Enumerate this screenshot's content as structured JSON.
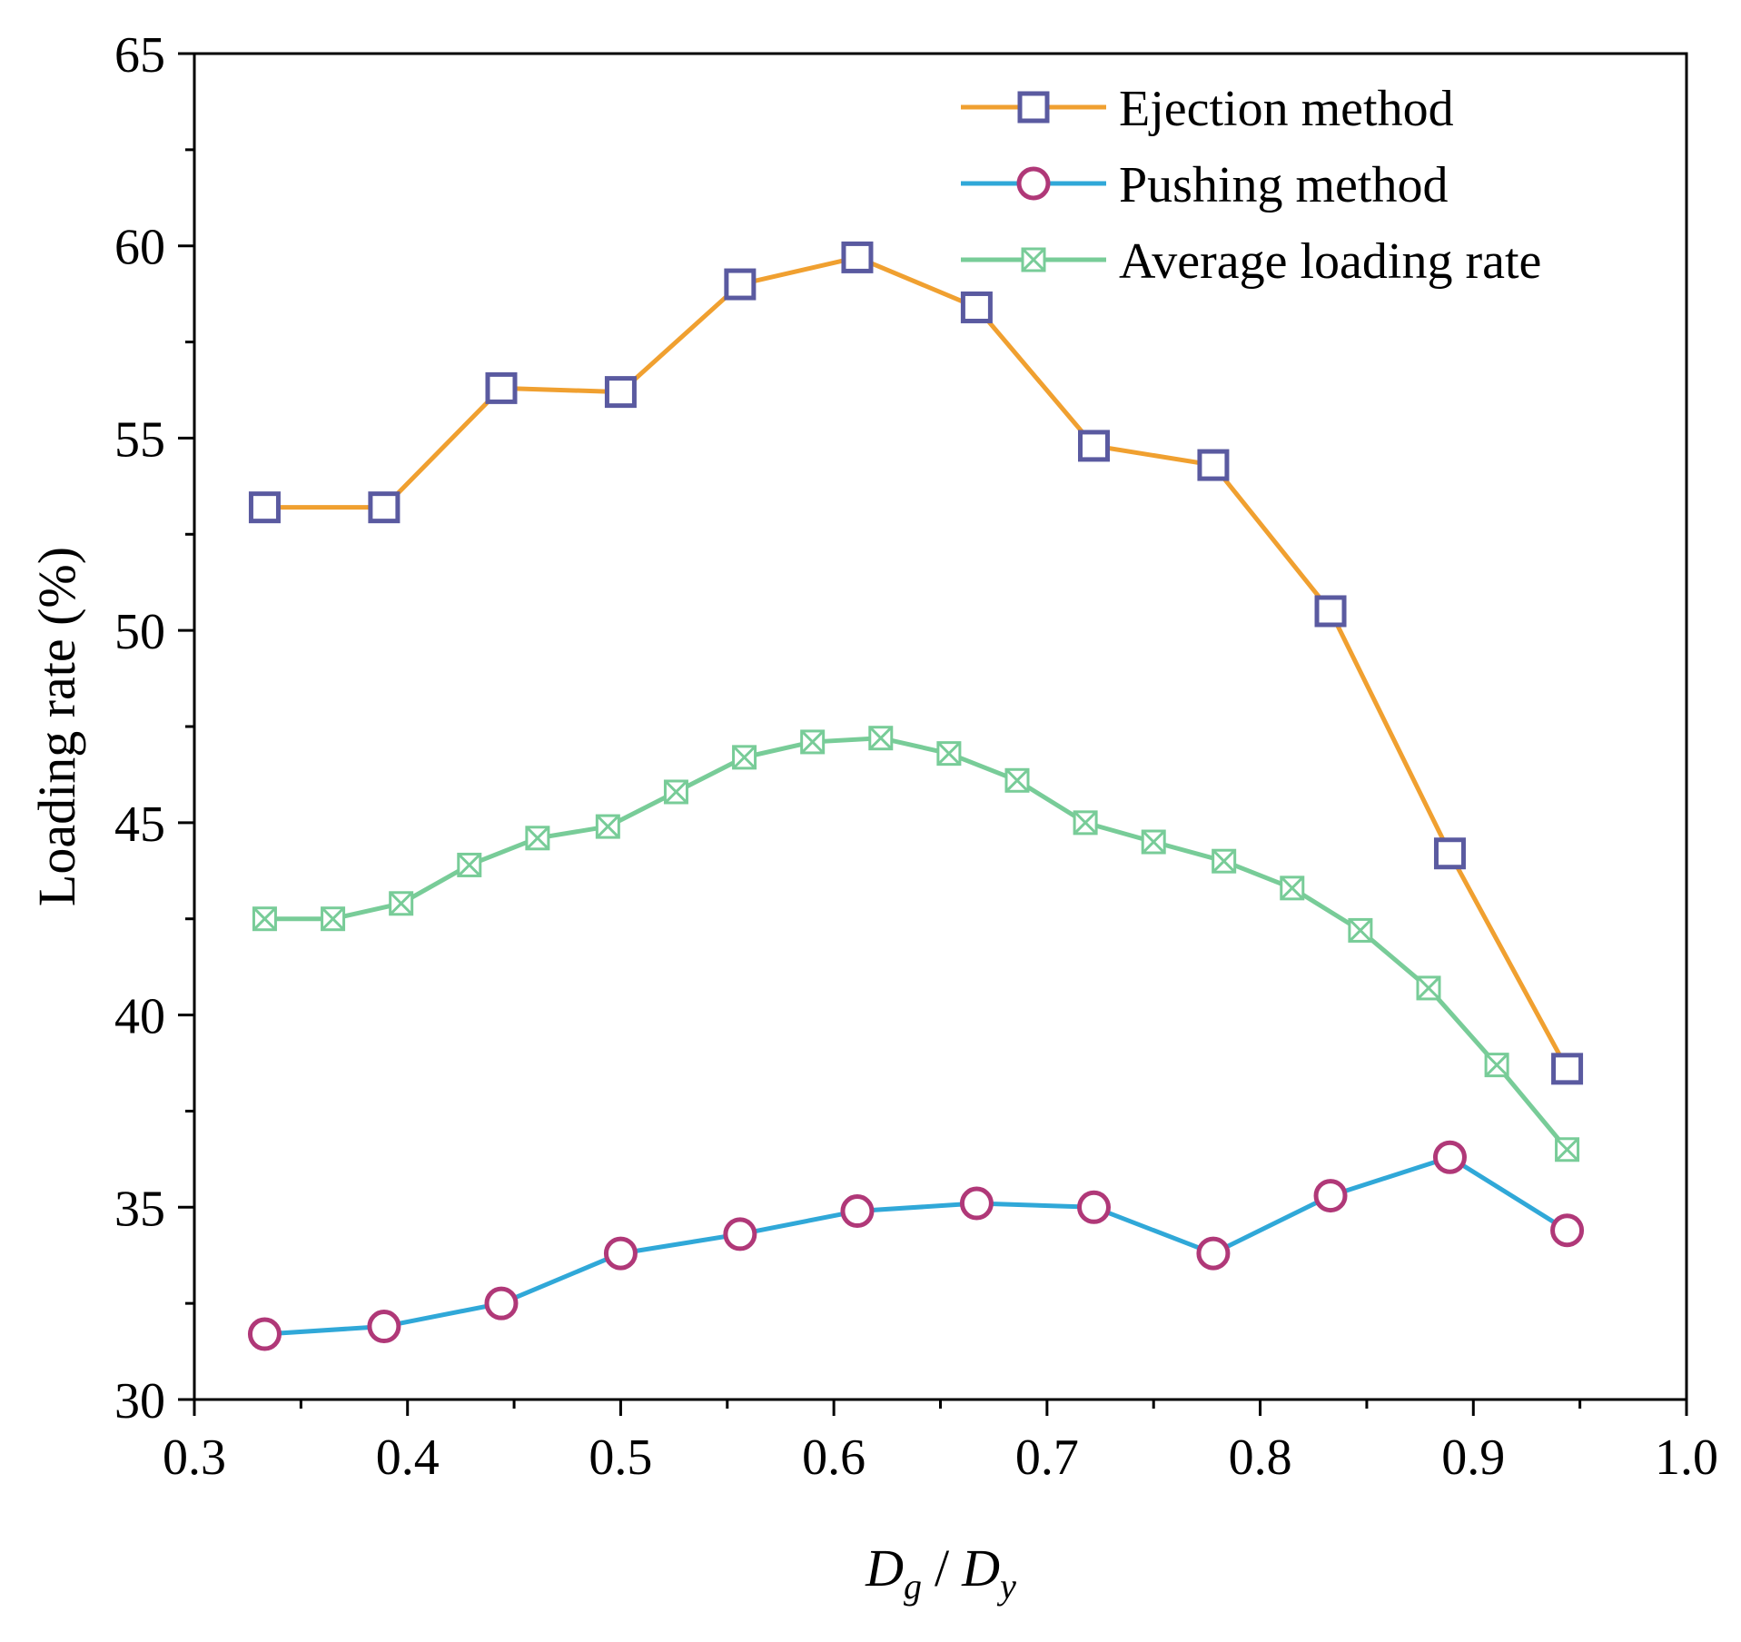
{
  "chart_data": {
    "type": "line",
    "title": "",
    "xlabel": {
      "main_x": "D",
      "sub_x": "g",
      "separator": "/",
      "main_y": "D",
      "sub_y": "y"
    },
    "ylabel": "Loading rate (%)",
    "xlim": [
      0.3,
      1.0
    ],
    "ylim": [
      30,
      65
    ],
    "xticks": [
      0.3,
      0.4,
      0.5,
      0.6,
      0.7,
      0.8,
      0.9,
      1.0
    ],
    "xtick_labels": [
      "0.3",
      "0.4",
      "0.5",
      "0.6",
      "0.7",
      "0.8",
      "0.9",
      "1.0"
    ],
    "yticks": [
      30,
      35,
      40,
      45,
      50,
      55,
      60,
      65
    ],
    "ytick_labels": [
      "30",
      "35",
      "40",
      "45",
      "50",
      "55",
      "60",
      "65"
    ],
    "grid": false,
    "legend_position": "top-right",
    "series": [
      {
        "name": "Ejection method",
        "line_color": "#F0A030",
        "marker": "square",
        "marker_color": "#5A5AA0",
        "x": [
          0.333,
          0.389,
          0.444,
          0.5,
          0.556,
          0.611,
          0.667,
          0.722,
          0.778,
          0.833,
          0.889,
          0.944
        ],
        "values": [
          53.2,
          53.2,
          56.3,
          56.2,
          59.0,
          59.7,
          58.4,
          54.8,
          54.3,
          50.5,
          44.2,
          38.6
        ]
      },
      {
        "name": "Pushing method",
        "line_color": "#30A8D8",
        "marker": "circle",
        "marker_color": "#B03878",
        "x": [
          0.333,
          0.389,
          0.444,
          0.5,
          0.556,
          0.611,
          0.667,
          0.722,
          0.778,
          0.833,
          0.889,
          0.944
        ],
        "values": [
          31.7,
          31.9,
          32.5,
          33.8,
          34.3,
          34.9,
          35.1,
          35.0,
          33.8,
          35.3,
          36.3,
          34.4
        ]
      },
      {
        "name": "Average loading rate",
        "line_color": "#78CC98",
        "marker": "crossed-square",
        "marker_color": "#78CC98",
        "x": [
          0.333,
          0.365,
          0.397,
          0.429,
          0.461,
          0.494,
          0.526,
          0.558,
          0.59,
          0.622,
          0.654,
          0.686,
          0.718,
          0.75,
          0.783,
          0.815,
          0.847,
          0.879,
          0.911,
          0.944
        ],
        "values": [
          42.5,
          42.5,
          42.9,
          43.9,
          44.6,
          44.9,
          45.8,
          46.7,
          47.1,
          47.2,
          46.8,
          46.1,
          45.0,
          44.5,
          44.0,
          43.3,
          42.2,
          40.7,
          38.7,
          36.5
        ]
      }
    ]
  }
}
